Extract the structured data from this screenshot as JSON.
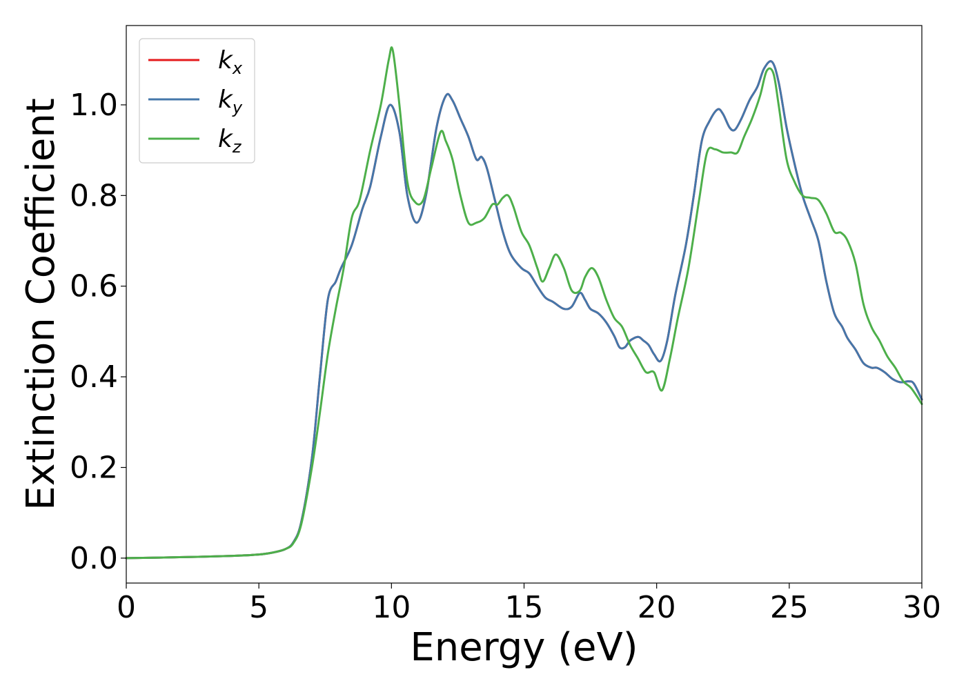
{
  "chart_data": {
    "type": "line",
    "xlabel": "Energy (eV)",
    "ylabel": "Extinction Coefficient",
    "xlim": [
      0,
      30
    ],
    "ylim": [
      -0.055,
      1.175
    ],
    "xticks": [
      0,
      5,
      10,
      15,
      20,
      25,
      30
    ],
    "xtick_labels": [
      "0",
      "5",
      "10",
      "15",
      "20",
      "25",
      "30"
    ],
    "yticks": [
      0.0,
      0.2,
      0.4,
      0.6,
      0.8,
      1.0
    ],
    "ytick_labels": [
      "0.0",
      "0.2",
      "0.4",
      "0.6",
      "0.8",
      "1.0"
    ],
    "grid": false,
    "legend_position": "top-left",
    "series": [
      {
        "name": "k",
        "subscript": "x",
        "color": "#e41a1c",
        "x": [
          0,
          2,
          4,
          5,
          5.5,
          6,
          6.3,
          6.6,
          7.0,
          7.3,
          7.6,
          7.9,
          8.1,
          8.5,
          8.9,
          9.2,
          9.6,
          9.95,
          10.3,
          10.6,
          10.95,
          11.3,
          11.7,
          12.05,
          12.3,
          12.6,
          12.9,
          13.2,
          13.4,
          13.6,
          13.9,
          14.2,
          14.5,
          14.9,
          15.2,
          15.5,
          15.8,
          16.1,
          16.5,
          16.8,
          17.1,
          17.3,
          17.5,
          17.8,
          18.1,
          18.4,
          18.6,
          18.8,
          19.0,
          19.3,
          19.5,
          19.7,
          19.9,
          20.15,
          20.4,
          20.7,
          21.1,
          21.4,
          21.7,
          22.0,
          22.3,
          22.5,
          22.75,
          22.95,
          23.2,
          23.5,
          23.8,
          24.05,
          24.35,
          24.6,
          24.9,
          25.2,
          25.5,
          25.8,
          26.1,
          26.4,
          26.7,
          27.0,
          27.2,
          27.5,
          27.8,
          28.1,
          28.3,
          28.6,
          28.9,
          29.2,
          29.5,
          29.7,
          30.0
        ],
        "y": [
          0.0,
          0.002,
          0.005,
          0.008,
          0.012,
          0.02,
          0.035,
          0.08,
          0.22,
          0.4,
          0.57,
          0.61,
          0.64,
          0.69,
          0.77,
          0.82,
          0.93,
          1.0,
          0.94,
          0.8,
          0.74,
          0.8,
          0.95,
          1.02,
          1.01,
          0.97,
          0.93,
          0.88,
          0.885,
          0.86,
          0.79,
          0.72,
          0.67,
          0.64,
          0.628,
          0.6,
          0.575,
          0.565,
          0.55,
          0.555,
          0.585,
          0.57,
          0.55,
          0.54,
          0.52,
          0.49,
          0.465,
          0.465,
          0.48,
          0.488,
          0.48,
          0.47,
          0.45,
          0.435,
          0.48,
          0.58,
          0.69,
          0.8,
          0.92,
          0.965,
          0.99,
          0.98,
          0.95,
          0.945,
          0.97,
          1.01,
          1.04,
          1.08,
          1.095,
          1.05,
          0.95,
          0.87,
          0.8,
          0.75,
          0.7,
          0.61,
          0.54,
          0.51,
          0.485,
          0.46,
          0.43,
          0.42,
          0.42,
          0.41,
          0.395,
          0.388,
          0.39,
          0.385,
          0.35
        ]
      },
      {
        "name": "k",
        "subscript": "y",
        "color": "#4477aa",
        "x": [
          0,
          2,
          4,
          5,
          5.5,
          6,
          6.3,
          6.6,
          7.0,
          7.3,
          7.6,
          7.9,
          8.1,
          8.5,
          8.9,
          9.2,
          9.6,
          9.95,
          10.3,
          10.6,
          10.95,
          11.3,
          11.7,
          12.05,
          12.3,
          12.6,
          12.9,
          13.2,
          13.4,
          13.6,
          13.9,
          14.2,
          14.5,
          14.9,
          15.2,
          15.5,
          15.8,
          16.1,
          16.5,
          16.8,
          17.1,
          17.3,
          17.5,
          17.8,
          18.1,
          18.4,
          18.6,
          18.8,
          19.0,
          19.3,
          19.5,
          19.7,
          19.9,
          20.15,
          20.4,
          20.7,
          21.1,
          21.4,
          21.7,
          22.0,
          22.3,
          22.5,
          22.75,
          22.95,
          23.2,
          23.5,
          23.8,
          24.05,
          24.35,
          24.6,
          24.9,
          25.2,
          25.5,
          25.8,
          26.1,
          26.4,
          26.7,
          27.0,
          27.2,
          27.5,
          27.8,
          28.1,
          28.3,
          28.6,
          28.9,
          29.2,
          29.5,
          29.7,
          30.0
        ],
        "y": [
          0.0,
          0.002,
          0.005,
          0.008,
          0.012,
          0.02,
          0.035,
          0.08,
          0.22,
          0.4,
          0.57,
          0.61,
          0.64,
          0.69,
          0.77,
          0.82,
          0.93,
          1.0,
          0.94,
          0.8,
          0.74,
          0.8,
          0.95,
          1.02,
          1.01,
          0.97,
          0.93,
          0.88,
          0.885,
          0.86,
          0.79,
          0.72,
          0.67,
          0.64,
          0.628,
          0.6,
          0.575,
          0.565,
          0.55,
          0.555,
          0.585,
          0.57,
          0.55,
          0.54,
          0.52,
          0.49,
          0.465,
          0.465,
          0.48,
          0.488,
          0.48,
          0.47,
          0.45,
          0.435,
          0.48,
          0.58,
          0.69,
          0.8,
          0.92,
          0.965,
          0.99,
          0.98,
          0.95,
          0.945,
          0.97,
          1.01,
          1.04,
          1.08,
          1.095,
          1.05,
          0.95,
          0.87,
          0.8,
          0.75,
          0.7,
          0.61,
          0.54,
          0.51,
          0.485,
          0.46,
          0.43,
          0.42,
          0.42,
          0.41,
          0.395,
          0.388,
          0.39,
          0.385,
          0.35
        ]
      },
      {
        "name": "k",
        "subscript": "z",
        "color": "#4daf4a",
        "x": [
          0,
          2,
          4,
          5,
          5.5,
          6,
          6.3,
          6.6,
          7.0,
          7.3,
          7.6,
          7.9,
          8.2,
          8.5,
          8.8,
          9.2,
          9.6,
          9.9,
          10.05,
          10.3,
          10.6,
          10.9,
          11.2,
          11.5,
          11.85,
          12.05,
          12.3,
          12.6,
          12.9,
          13.2,
          13.5,
          13.8,
          14.0,
          14.2,
          14.4,
          14.6,
          14.9,
          15.2,
          15.5,
          15.7,
          15.95,
          16.2,
          16.5,
          16.8,
          17.1,
          17.3,
          17.55,
          17.8,
          18.1,
          18.4,
          18.7,
          19.0,
          19.3,
          19.6,
          19.9,
          20.2,
          20.5,
          20.8,
          21.2,
          21.6,
          21.9,
          22.2,
          22.5,
          22.8,
          23.05,
          23.3,
          23.6,
          23.9,
          24.15,
          24.4,
          24.6,
          24.9,
          25.2,
          25.5,
          25.8,
          26.1,
          26.4,
          26.7,
          26.95,
          27.2,
          27.5,
          27.8,
          28.1,
          28.4,
          28.7,
          29.0,
          29.3,
          29.6,
          30.0
        ],
        "y": [
          0.0,
          0.002,
          0.005,
          0.008,
          0.012,
          0.02,
          0.033,
          0.075,
          0.2,
          0.32,
          0.45,
          0.55,
          0.64,
          0.75,
          0.79,
          0.9,
          1.0,
          1.1,
          1.12,
          1.0,
          0.83,
          0.785,
          0.79,
          0.86,
          0.94,
          0.92,
          0.88,
          0.8,
          0.74,
          0.74,
          0.75,
          0.78,
          0.78,
          0.795,
          0.8,
          0.775,
          0.72,
          0.69,
          0.64,
          0.61,
          0.64,
          0.67,
          0.64,
          0.59,
          0.59,
          0.62,
          0.64,
          0.62,
          0.57,
          0.53,
          0.51,
          0.47,
          0.44,
          0.41,
          0.41,
          0.37,
          0.44,
          0.53,
          0.64,
          0.79,
          0.895,
          0.902,
          0.895,
          0.895,
          0.895,
          0.93,
          0.97,
          1.02,
          1.075,
          1.07,
          1.0,
          0.88,
          0.83,
          0.8,
          0.795,
          0.79,
          0.76,
          0.72,
          0.718,
          0.7,
          0.65,
          0.56,
          0.51,
          0.48,
          0.445,
          0.42,
          0.39,
          0.375,
          0.34
        ]
      }
    ]
  }
}
